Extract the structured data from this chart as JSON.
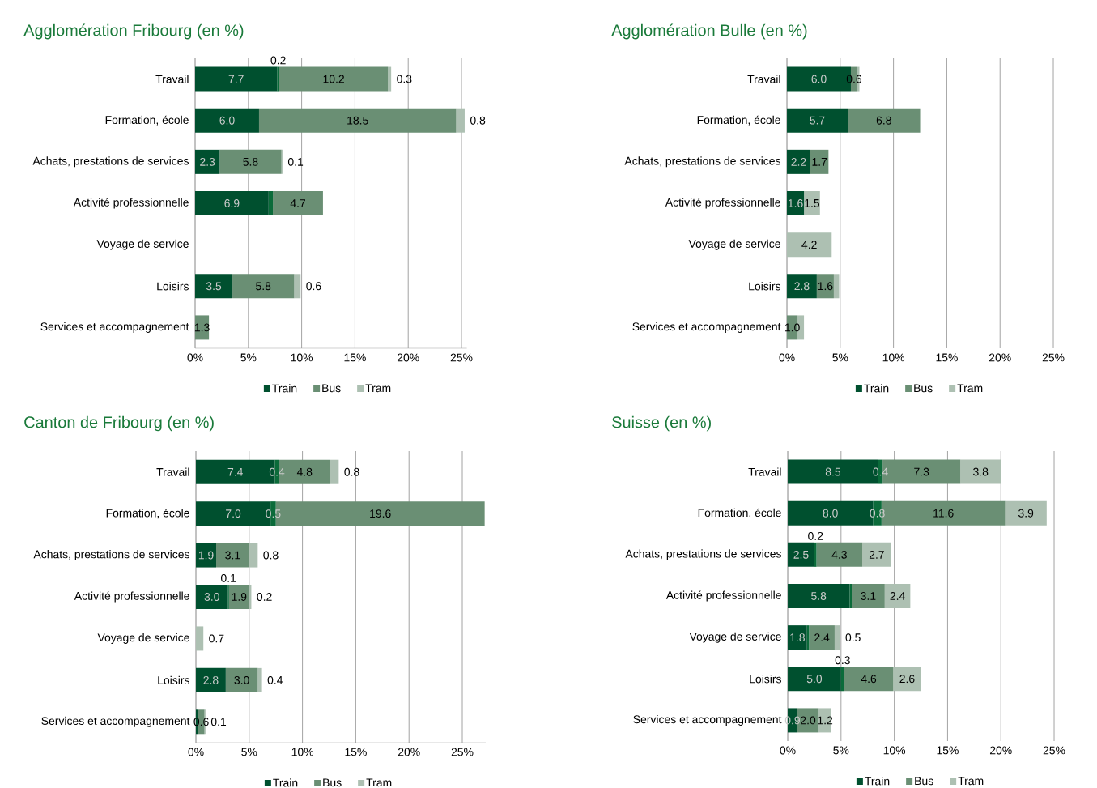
{
  "chart_data": [
    {
      "type": "bar",
      "orientation": "horizontal",
      "stacked": true,
      "title": "Agglomération Fribourg (en %)",
      "categories": [
        "Travail",
        "Formation, école",
        "Achats, prestations de services",
        "Activité professionnelle",
        "Voyage de service",
        "Loisirs",
        "Services et accompagnement"
      ],
      "series": [
        {
          "name": "Train",
          "color": "#00502f",
          "values": [
            7.7,
            6.0,
            2.3,
            6.9,
            null,
            3.5,
            null
          ],
          "value_labels": [
            "7.7",
            "6.0",
            "2.3",
            "6.9",
            null,
            "3.5",
            null
          ]
        },
        {
          "color": "#0b6b3a",
          "values": [
            0.2,
            null,
            null,
            0.4,
            null,
            null,
            null
          ],
          "value_labels": [
            "0.2",
            null,
            null,
            null,
            null,
            null,
            null
          ]
        },
        {
          "name": "Bus",
          "color": "#6a8f74",
          "values": [
            10.2,
            18.5,
            5.8,
            4.7,
            null,
            5.8,
            1.3
          ],
          "value_labels": [
            "10.2",
            "18.5",
            "5.8",
            "4.7",
            null,
            "5.8",
            "1.3"
          ]
        },
        {
          "name": "Tram",
          "color": "#adc0b2",
          "values": [
            0.3,
            0.8,
            0.1,
            null,
            null,
            0.6,
            null
          ],
          "value_labels": [
            "0.3",
            "0.8",
            "0.1",
            null,
            null,
            "0.6",
            null
          ]
        }
      ],
      "xlim": [
        0,
        25.5
      ],
      "xticks": [
        {
          "value": 0,
          "label": "0%"
        },
        {
          "value": 5,
          "label": "5%"
        },
        {
          "value": 10,
          "label": "10%"
        },
        {
          "value": 15,
          "label": "15%"
        },
        {
          "value": 20,
          "label": "20%"
        },
        {
          "value": 25,
          "label": "25%"
        }
      ],
      "grid": "x",
      "legend": "bottom"
    },
    {
      "type": "bar",
      "orientation": "horizontal",
      "stacked": true,
      "title": "Agglomération Bulle (en %)",
      "categories": [
        "Travail",
        "Formation, école",
        "Achats, prestations de services",
        "Activité professionnelle",
        "Voyage de service",
        "Loisirs",
        "Services et accompagnement"
      ],
      "series": [
        {
          "name": "Train",
          "color": "#00502f",
          "values": [
            6.0,
            5.7,
            2.2,
            1.6,
            null,
            2.8,
            null
          ],
          "value_labels": [
            "6.0",
            "5.7",
            "2.2",
            "1.6",
            null,
            "2.8",
            null
          ]
        },
        {
          "name": "Bus",
          "color": "#6a8f74",
          "values": [
            0.6,
            6.8,
            1.7,
            null,
            null,
            1.6,
            1.0
          ],
          "value_labels": [
            "0.6",
            "6.8",
            "1.7",
            null,
            null,
            "1.6",
            "1.0"
          ]
        },
        {
          "name": "Tram",
          "color": "#adc0b2",
          "values": [
            0.2,
            null,
            null,
            1.5,
            4.2,
            0.5,
            0.6
          ],
          "value_labels": [
            null,
            null,
            null,
            "1.5",
            "4.2",
            null,
            null
          ]
        }
      ],
      "xlim": [
        0,
        25
      ],
      "xticks": [
        {
          "value": 0,
          "label": "0%"
        },
        {
          "value": 5,
          "label": "5%"
        },
        {
          "value": 10,
          "label": "10%"
        },
        {
          "value": 15,
          "label": "15%"
        },
        {
          "value": 20,
          "label": "20%"
        },
        {
          "value": 25,
          "label": "25%"
        }
      ],
      "grid": "x",
      "legend": "bottom"
    },
    {
      "type": "bar",
      "orientation": "horizontal",
      "stacked": true,
      "title": "Canton de Fribourg (en %)",
      "categories": [
        "Travail",
        "Formation, école",
        "Achats, prestations de services",
        "Activité professionnelle",
        "Voyage de service",
        "Loisirs",
        "Services et accompagnement"
      ],
      "series": [
        {
          "name": "Train",
          "color": "#00502f",
          "values": [
            7.4,
            7.0,
            1.9,
            3.0,
            null,
            2.8,
            0.2
          ],
          "value_labels": [
            "7.4",
            "7.0",
            "1.9",
            "3.0",
            null,
            "2.8",
            null
          ]
        },
        {
          "color": "#0b6b3a",
          "values": [
            0.4,
            0.5,
            null,
            0.1,
            null,
            null,
            null
          ],
          "value_labels": [
            "0.4",
            "0.5",
            null,
            "0.1",
            null,
            null,
            null
          ]
        },
        {
          "name": "Bus",
          "color": "#6a8f74",
          "values": [
            4.8,
            19.6,
            3.1,
            1.9,
            null,
            3.0,
            0.6
          ],
          "value_labels": [
            "4.8",
            "19.6",
            "3.1",
            "1.9",
            null,
            "3.0",
            "0.6"
          ]
        },
        {
          "name": "Tram",
          "color": "#adc0b2",
          "values": [
            0.8,
            null,
            0.8,
            0.2,
            0.7,
            0.4,
            0.1
          ],
          "value_labels": [
            "0.8",
            null,
            "0.8",
            "0.2",
            "0.7",
            "0.4",
            "0.1"
          ]
        }
      ],
      "xlim": [
        0,
        27.2
      ],
      "xticks": [
        {
          "value": 0,
          "label": "0%"
        },
        {
          "value": 5,
          "label": "5%"
        },
        {
          "value": 10,
          "label": "10%"
        },
        {
          "value": 15,
          "label": "15%"
        },
        {
          "value": 20,
          "label": "20%"
        },
        {
          "value": 25,
          "label": "25%"
        }
      ],
      "grid": "x",
      "legend": "bottom"
    },
    {
      "type": "bar",
      "orientation": "horizontal",
      "stacked": true,
      "title": "Suisse (en %)",
      "categories": [
        "Travail",
        "Formation, école",
        "Achats, prestations de services",
        "Activité professionnelle",
        "Voyage de service",
        "Loisirs",
        "Services et accompagnement"
      ],
      "series": [
        {
          "name": "Train",
          "color": "#00502f",
          "values": [
            8.5,
            8.0,
            2.5,
            5.8,
            1.8,
            5.0,
            0.9
          ],
          "value_labels": [
            "8.5",
            "8.0",
            "2.5",
            "5.8",
            "1.8",
            "5.0",
            "0.9"
          ]
        },
        {
          "color": "#0b6b3a",
          "values": [
            0.4,
            0.8,
            0.2,
            0.2,
            0.2,
            0.3,
            null
          ],
          "value_labels": [
            "0.4",
            "0.8",
            "0.2",
            null,
            null,
            "0.3",
            null
          ]
        },
        {
          "name": "Bus",
          "color": "#6a8f74",
          "values": [
            7.3,
            11.6,
            4.3,
            3.1,
            2.4,
            4.6,
            2.0
          ],
          "value_labels": [
            "7.3",
            "11.6",
            "4.3",
            "3.1",
            "2.4",
            "4.6",
            "2.0"
          ]
        },
        {
          "name": "Tram",
          "color": "#adc0b2",
          "values": [
            3.8,
            3.9,
            2.7,
            2.4,
            0.5,
            2.6,
            1.2
          ],
          "value_labels": [
            "3.8",
            "3.9",
            "2.7",
            "2.4",
            "0.5",
            "2.6",
            "1.2"
          ]
        }
      ],
      "xlim": [
        0,
        25
      ],
      "xticks": [
        {
          "value": 0,
          "label": "0%"
        },
        {
          "value": 5,
          "label": "5%"
        },
        {
          "value": 10,
          "label": "10%"
        },
        {
          "value": 15,
          "label": "15%"
        },
        {
          "value": 20,
          "label": "20%"
        },
        {
          "value": 25,
          "label": "25%"
        }
      ],
      "grid": "x",
      "legend": "bottom"
    }
  ]
}
